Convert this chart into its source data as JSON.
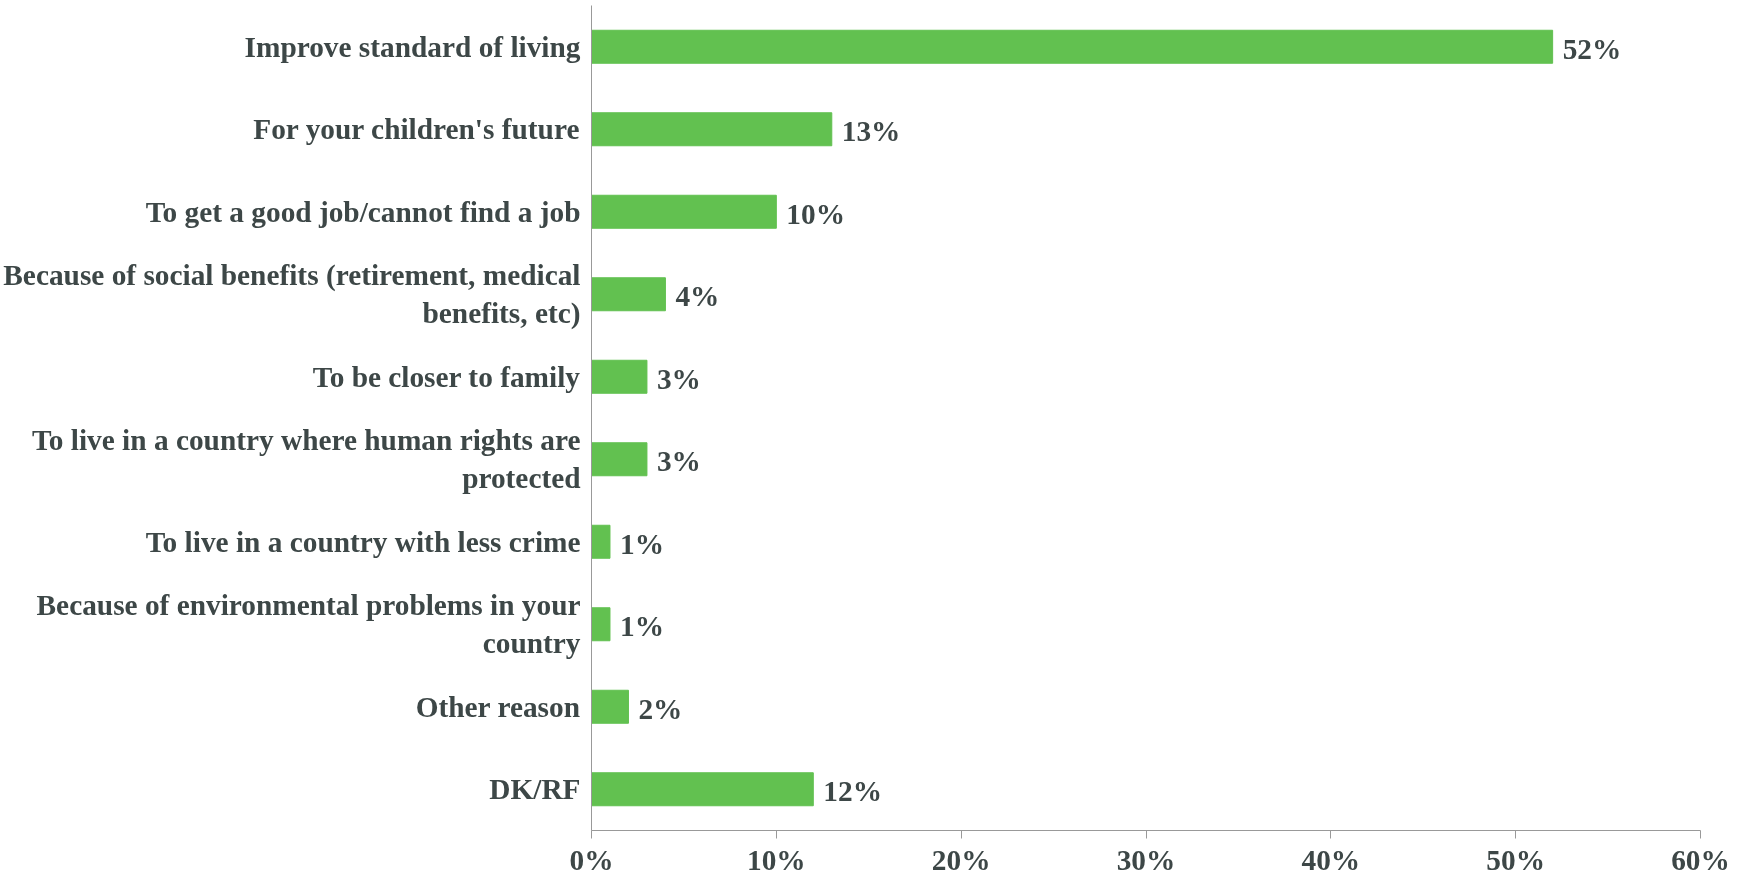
{
  "chart_data": {
    "type": "bar",
    "orientation": "horizontal",
    "categories": [
      "Improve standard of living",
      "For your children's future",
      "To get a good job/cannot find a job",
      "Because of social benefits (retirement, medical benefits, etc)",
      "To be closer to family",
      "To live in a country where human rights are protected",
      "To live in a country with less crime",
      "Because of environmental problems in your country",
      "Other reason",
      "DK/RF"
    ],
    "values": [
      52,
      13,
      10,
      4,
      3,
      3,
      1,
      1,
      2,
      12
    ],
    "value_labels": [
      "52%",
      "13%",
      "10%",
      "4%",
      "3%",
      "3%",
      "1%",
      "1%",
      "2%",
      "12%"
    ],
    "color": "#62c150",
    "xlim": [
      0,
      60
    ],
    "xticks": [
      {
        "value": 0,
        "label": "0%"
      },
      {
        "value": 10,
        "label": "10%"
      },
      {
        "value": 20,
        "label": "20%"
      },
      {
        "value": 30,
        "label": "30%"
      },
      {
        "value": 40,
        "label": "40%"
      },
      {
        "value": 50,
        "label": "50%"
      },
      {
        "value": 60,
        "label": "60%"
      }
    ],
    "grid": false
  }
}
